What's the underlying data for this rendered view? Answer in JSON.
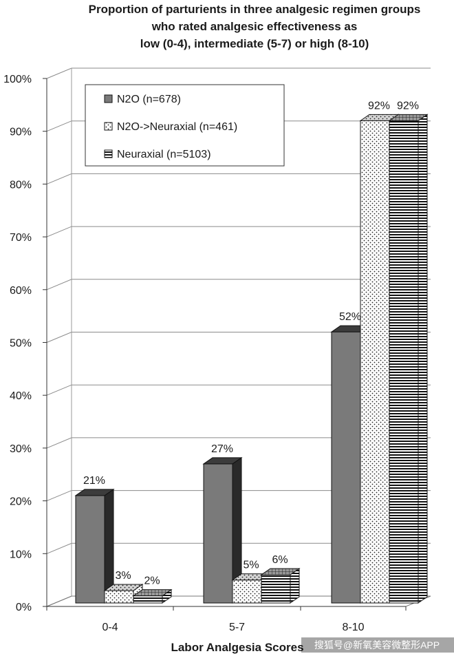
{
  "chart_data": {
    "type": "bar",
    "title_lines": [
      "Proportion of parturients in three analgesic regimen groups",
      "who rated analgesic effectiveness as",
      "low (0-4), intermediate (5-7) or high (8-10)"
    ],
    "xlabel": "Labor Analgesia Scores",
    "ylabel": "",
    "categories": [
      "0-4",
      "5-7",
      "8-10"
    ],
    "ylim": [
      0,
      100
    ],
    "yticks": [
      "0%",
      "10%",
      "20%",
      "30%",
      "40%",
      "50%",
      "60%",
      "70%",
      "80%",
      "90%",
      "100%"
    ],
    "grid": true,
    "legend_position": "top-left",
    "series": [
      {
        "name": "N2O (n=678)",
        "values": [
          21,
          27,
          52
        ],
        "labels": [
          "21%",
          "27%",
          "52%"
        ],
        "pattern": "solid",
        "color": "#7a7a7a"
      },
      {
        "name": "N2O->Neuraxial (n=461)",
        "values": [
          3,
          5,
          92
        ],
        "labels": [
          "3%",
          "5%",
          "92%"
        ],
        "pattern": "dots",
        "color": "#ffffff"
      },
      {
        "name": "Neuraxial (n=5103)",
        "values": [
          2,
          6,
          92
        ],
        "labels": [
          "2%",
          "6%",
          "92%"
        ],
        "pattern": "hstripes",
        "color": "#ffffff"
      }
    ]
  },
  "watermark": "搜狐号@新氧美容微整形APP"
}
